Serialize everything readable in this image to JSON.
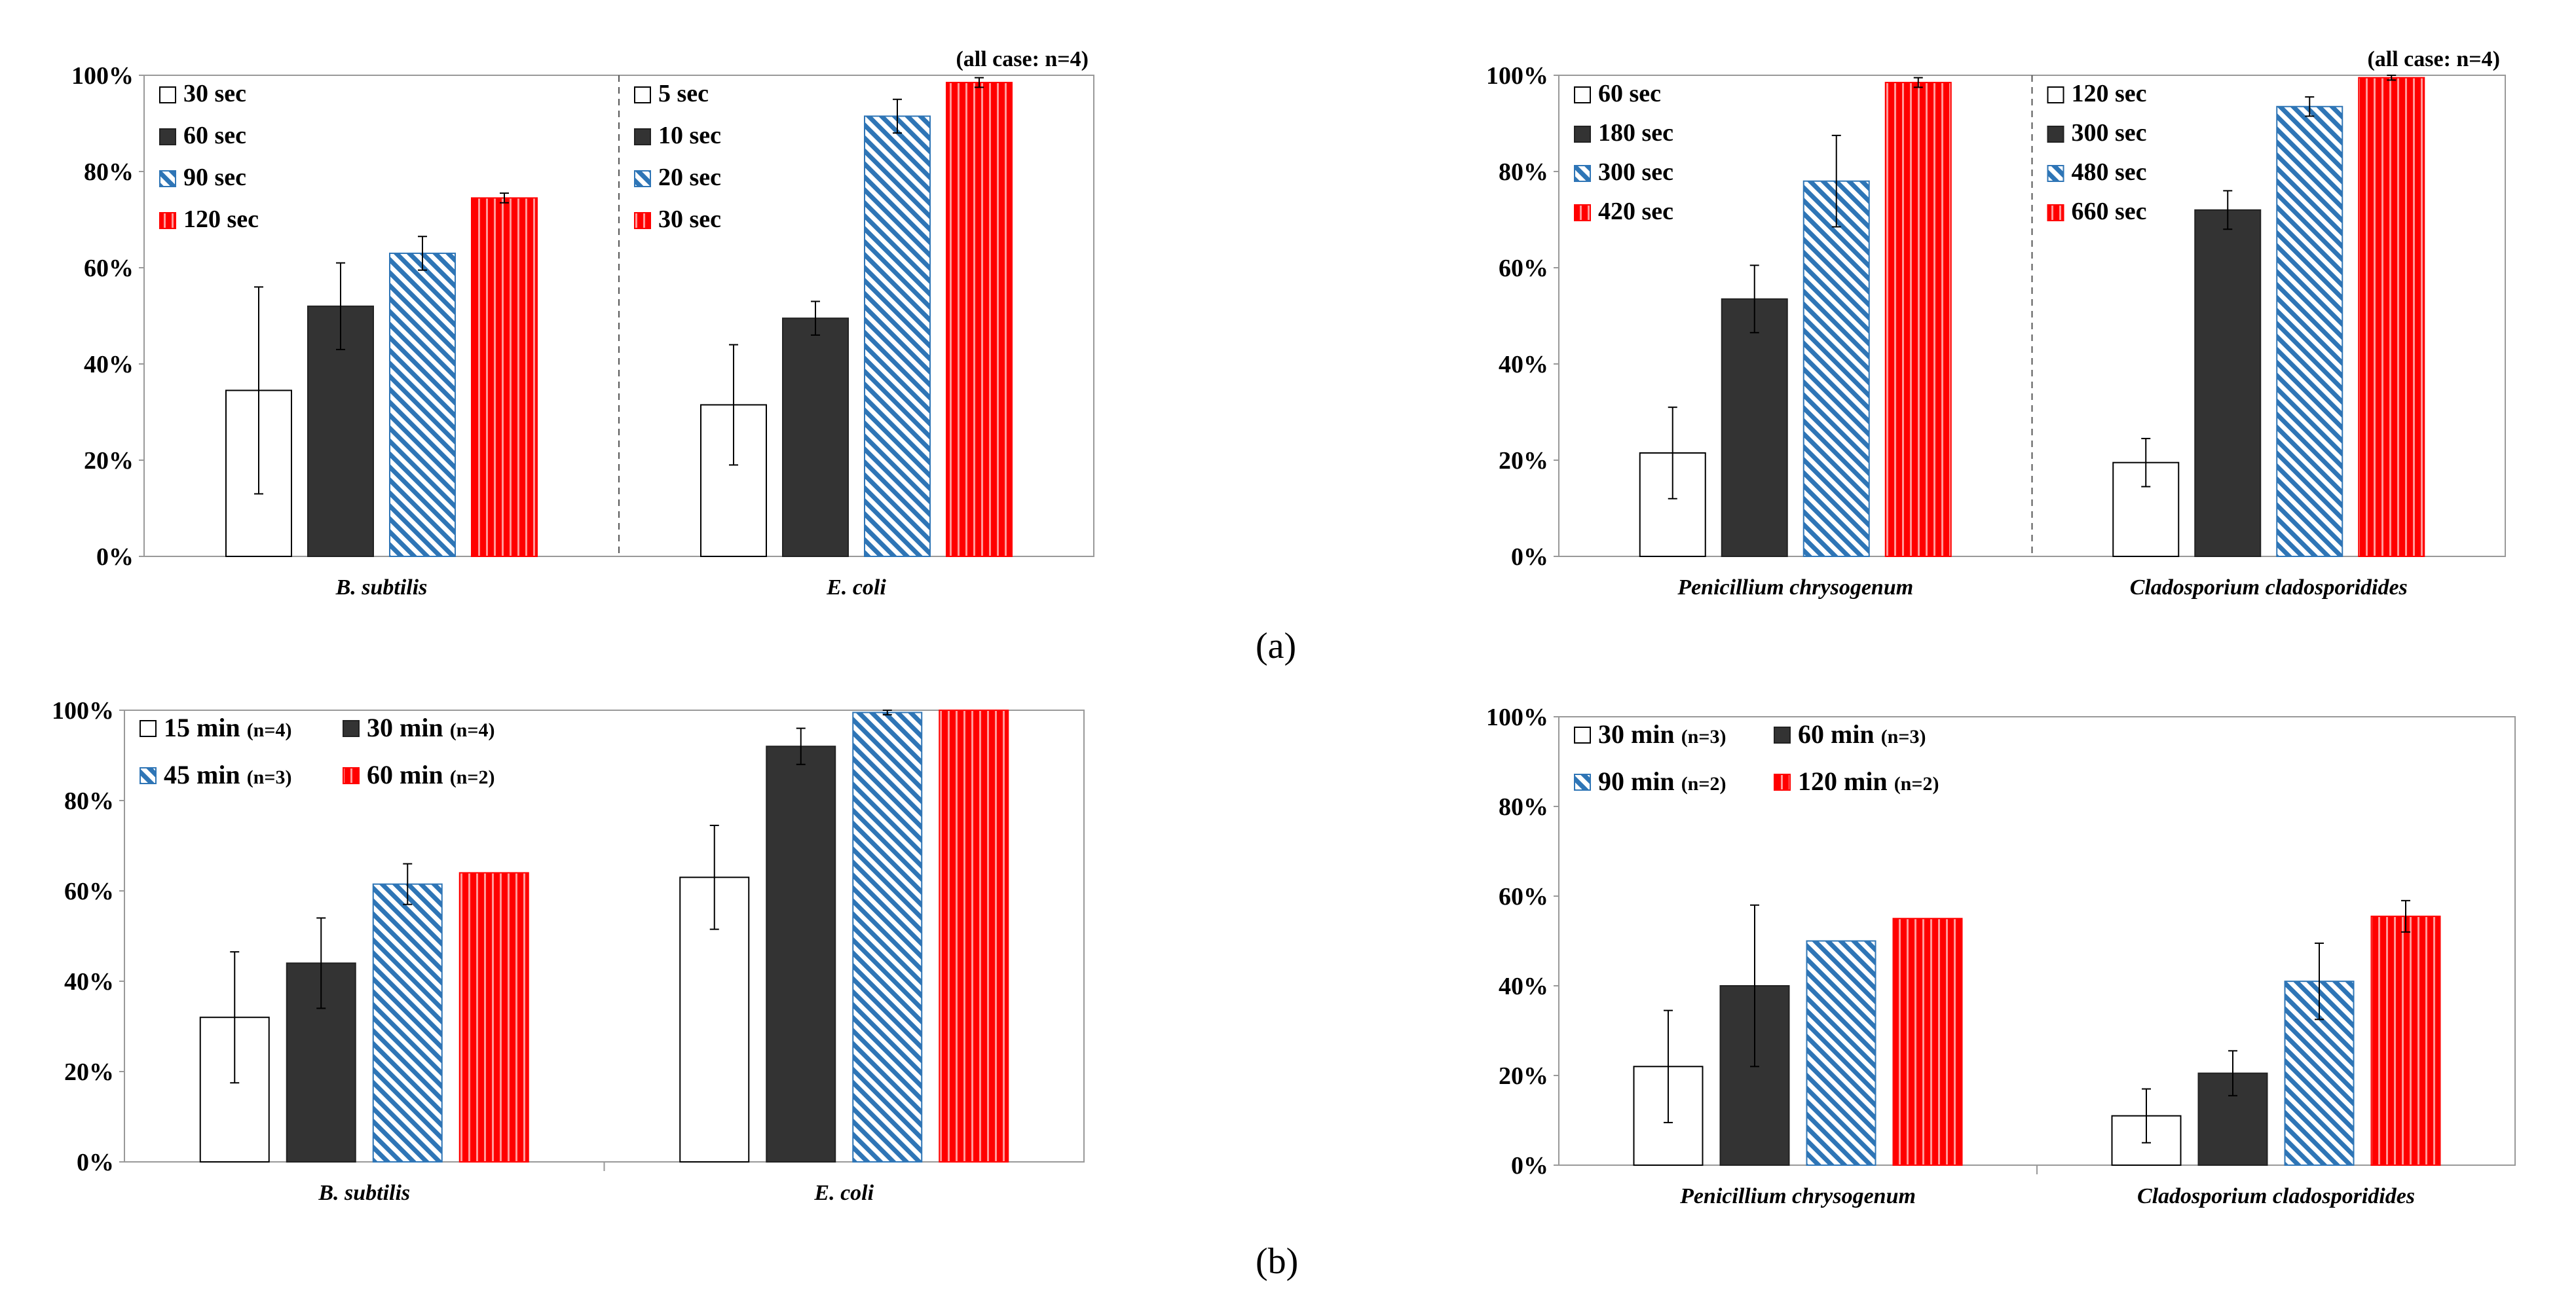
{
  "captions": {
    "a": "(a)",
    "b": "(b)"
  },
  "colors": {
    "s1": "#ffffff",
    "s2": "#333333",
    "s3": "#2e75b6",
    "s4": "#ff0000",
    "axis": "#999999",
    "grid_divider": "#555555"
  },
  "chart_data": [
    {
      "id": "a-left",
      "type": "bar",
      "title": "",
      "note": "(all case: n=4)",
      "categories": [
        "B. subtilis",
        "E. coli"
      ],
      "category_divider": "dashed",
      "ylim": [
        0,
        100
      ],
      "yticks": [
        "0%",
        "20%",
        "40%",
        "60%",
        "80%",
        "100%"
      ],
      "grid": false,
      "legend_layout": "per-category",
      "series": [
        {
          "style": "s1",
          "values": [
            34.5,
            31.5
          ],
          "errors": [
            21.5,
            12.5
          ],
          "labels": [
            "30 sec",
            "5 sec"
          ]
        },
        {
          "style": "s2",
          "values": [
            52,
            49.5
          ],
          "errors": [
            9,
            3.5
          ],
          "labels": [
            "60 sec",
            "10 sec"
          ]
        },
        {
          "style": "s3",
          "values": [
            63,
            91.5
          ],
          "errors": [
            3.5,
            3.5
          ],
          "labels": [
            "90 sec",
            "20 sec"
          ]
        },
        {
          "style": "s4",
          "values": [
            74.5,
            98.5
          ],
          "errors": [
            1,
            1
          ],
          "labels": [
            "120 sec",
            "30 sec"
          ]
        }
      ]
    },
    {
      "id": "a-right",
      "type": "bar",
      "title": "",
      "note": "(all case: n=4)",
      "categories": [
        "Penicillium chrysogenum",
        "Cladosporium cladosporidides"
      ],
      "category_divider": "dashed",
      "ylim": [
        0,
        100
      ],
      "yticks": [
        "0%",
        "20%",
        "40%",
        "60%",
        "80%",
        "100%"
      ],
      "grid": false,
      "legend_layout": "per-category",
      "series": [
        {
          "style": "s1",
          "values": [
            21.5,
            19.5
          ],
          "errors": [
            9.5,
            5
          ],
          "labels": [
            "60 sec",
            "120 sec"
          ]
        },
        {
          "style": "s2",
          "values": [
            53.5,
            72
          ],
          "errors": [
            7,
            4
          ],
          "labels": [
            "180 sec",
            "300 sec"
          ]
        },
        {
          "style": "s3",
          "values": [
            78,
            93.5
          ],
          "errors": [
            9.5,
            2
          ],
          "labels": [
            "300 sec",
            "480 sec"
          ]
        },
        {
          "style": "s4",
          "values": [
            98.5,
            99.5
          ],
          "errors": [
            1,
            0.5
          ],
          "labels": [
            "420 sec",
            "660 sec"
          ]
        }
      ]
    },
    {
      "id": "b-left",
      "type": "bar",
      "title": "",
      "categories": [
        "B. subtilis",
        "E. coli"
      ],
      "category_divider": "tick",
      "ylim": [
        0,
        100
      ],
      "yticks": [
        "0%",
        "20%",
        "40%",
        "60%",
        "80%",
        "100%"
      ],
      "grid": false,
      "legend_layout": "shared",
      "series": [
        {
          "style": "s1",
          "name": "15 min",
          "n": "(n=4)",
          "values": [
            32,
            63
          ],
          "errors": [
            14.5,
            11.5
          ]
        },
        {
          "style": "s2",
          "name": "30 min",
          "n": "(n=4)",
          "values": [
            44,
            92
          ],
          "errors": [
            10,
            4
          ]
        },
        {
          "style": "s3",
          "name": "45 min",
          "n": "(n=3)",
          "values": [
            61.5,
            99.5
          ],
          "errors": [
            4.5,
            0.5
          ]
        },
        {
          "style": "s4",
          "name": "60 min",
          "n": "(n=2)",
          "values": [
            64,
            100
          ],
          "errors": [
            0,
            0
          ]
        }
      ]
    },
    {
      "id": "b-right",
      "type": "bar",
      "title": "",
      "categories": [
        "Penicillium chrysogenum",
        "Cladosporium cladosporidides"
      ],
      "category_divider": "tick",
      "ylim": [
        0,
        100
      ],
      "yticks": [
        "0%",
        "20%",
        "40%",
        "60%",
        "80%",
        "100%"
      ],
      "grid": false,
      "legend_layout": "shared",
      "series": [
        {
          "style": "s1",
          "name": "30 min",
          "n": "(n=3)",
          "values": [
            22,
            11
          ],
          "errors": [
            12.5,
            6
          ]
        },
        {
          "style": "s2",
          "name": "60 min",
          "n": "(n=3)",
          "values": [
            40,
            20.5
          ],
          "errors": [
            18,
            5
          ]
        },
        {
          "style": "s3",
          "name": "90 min",
          "n": "(n=2)",
          "values": [
            50,
            41
          ],
          "errors": [
            0,
            8.5
          ]
        },
        {
          "style": "s4",
          "name": "120 min",
          "n": "(n=2)",
          "values": [
            55,
            55.5
          ],
          "errors": [
            0,
            3.5
          ]
        }
      ]
    }
  ]
}
